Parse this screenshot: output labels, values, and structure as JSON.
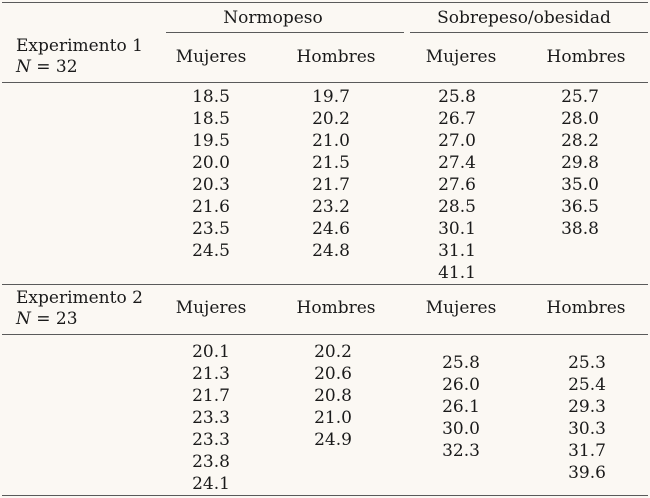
{
  "header": {
    "group_normal": "Normopeso",
    "group_over": "Sobrepeso/obesidad"
  },
  "experiments": [
    {
      "title": "Experimento 1",
      "n_label": "N",
      "n_text": " = 32",
      "col_labels": [
        "Mujeres",
        "Hombres",
        "Mujeres",
        "Hombres"
      ],
      "columns": [
        [
          "18.5",
          "18.5",
          "19.5",
          "20.0",
          "20.3",
          "21.6",
          "23.5",
          "24.5"
        ],
        [
          "19.7",
          "20.2",
          "21.0",
          "21.5",
          "21.7",
          "23.2",
          "24.6",
          "24.8"
        ],
        [
          "25.8",
          "26.7",
          "27.0",
          "27.4",
          "27.6",
          "28.5",
          "30.1",
          "31.1",
          "41.1"
        ],
        [
          "25.7",
          "28.0",
          "28.2",
          "29.8",
          "35.0",
          "36.5",
          "38.8"
        ]
      ]
    },
    {
      "title": "Experimento 2",
      "n_label": "N",
      "n_text": " = 23",
      "col_labels": [
        "Mujeres",
        "Hombres",
        "Mujeres",
        "Hombres"
      ],
      "columns": [
        [
          "20.1",
          "21.3",
          "21.7",
          "23.3",
          "23.3",
          "23.8",
          "24.1"
        ],
        [
          "20.2",
          "20.6",
          "20.8",
          "21.0",
          "24.9"
        ],
        [
          "25.8",
          "26.0",
          "26.1",
          "30.0",
          "32.3"
        ],
        [
          "25.3",
          "25.4",
          "29.3",
          "30.3",
          "31.7",
          "39.6"
        ]
      ]
    }
  ]
}
